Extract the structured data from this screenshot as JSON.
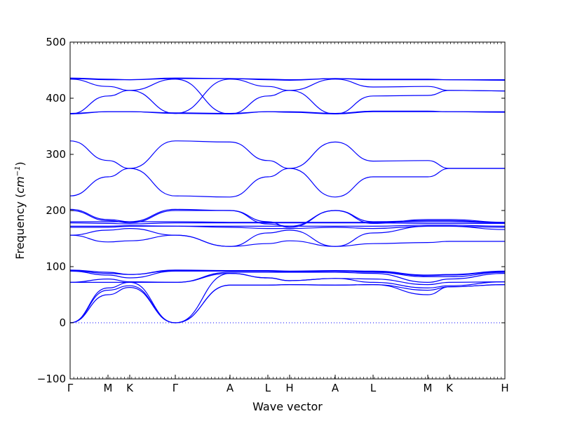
{
  "chart_data": {
    "type": "line",
    "title": "",
    "xlabel": "Wave vector",
    "ylabel": "Frequency (cm⁻¹)",
    "ylabel_parts": {
      "prefix": "Frequency (",
      "unit_base": "cm",
      "unit_exp": "−1",
      "suffix": ")"
    },
    "ylim": [
      -100,
      500
    ],
    "yticks": [
      -100,
      0,
      100,
      200,
      300,
      400,
      500
    ],
    "xlim": [
      0,
      1
    ],
    "high_symmetry_points": [
      {
        "label": "Γ",
        "x": 0.0
      },
      {
        "label": "M",
        "x": 0.0871
      },
      {
        "label": "K",
        "x": 0.1371
      },
      {
        "label": "Γ",
        "x": 0.2419
      },
      {
        "label": "A",
        "x": 0.3677
      },
      {
        "label": "L",
        "x": 0.4548
      },
      {
        "label": "H",
        "x": 0.5048
      },
      {
        "label": "A",
        "x": 0.6097
      },
      {
        "label": "L",
        "x": 0.6968
      },
      {
        "label": "M",
        "x": 0.8226
      },
      {
        "label": "K",
        "x": 0.8726
      },
      {
        "label": "H",
        "x": 1.0
      }
    ],
    "zero_line": true,
    "line_color": "#0000ff",
    "series": [
      {
        "values": [
          [
            0.0,
            0
          ],
          [
            0.0871,
            50
          ],
          [
            0.1371,
            63
          ],
          [
            0.2419,
            0
          ],
          [
            0.3677,
            67
          ],
          [
            0.4548,
            67
          ],
          [
            0.5048,
            68
          ],
          [
            0.6097,
            67
          ],
          [
            0.6968,
            68
          ],
          [
            0.8226,
            50
          ],
          [
            0.8726,
            64
          ],
          [
            1.0,
            68
          ]
        ]
      },
      {
        "values": [
          [
            0.0,
            0
          ],
          [
            0.0871,
            58
          ],
          [
            0.1371,
            66
          ],
          [
            0.2419,
            0
          ],
          [
            0.3677,
            67
          ],
          [
            0.4548,
            67
          ],
          [
            0.5048,
            68
          ],
          [
            0.6097,
            67
          ],
          [
            0.6968,
            68
          ],
          [
            0.8226,
            58
          ],
          [
            0.8726,
            64
          ],
          [
            1.0,
            68
          ]
        ]
      },
      {
        "values": [
          [
            0.0,
            0
          ],
          [
            0.0871,
            62
          ],
          [
            0.1371,
            72
          ],
          [
            0.2419,
            0
          ],
          [
            0.3677,
            88
          ],
          [
            0.4548,
            80
          ],
          [
            0.5048,
            75
          ],
          [
            0.6097,
            79
          ],
          [
            0.6968,
            72
          ],
          [
            0.8226,
            62
          ],
          [
            0.8726,
            66
          ],
          [
            1.0,
            73
          ]
        ]
      },
      {
        "values": [
          [
            0.0,
            72
          ],
          [
            0.0871,
            72
          ],
          [
            0.1371,
            72
          ],
          [
            0.2419,
            72
          ],
          [
            0.3677,
            88
          ],
          [
            0.4548,
            80
          ],
          [
            0.5048,
            75
          ],
          [
            0.6097,
            79
          ],
          [
            0.6968,
            78
          ],
          [
            0.8226,
            68
          ],
          [
            0.8726,
            72
          ],
          [
            1.0,
            73
          ]
        ]
      },
      {
        "values": [
          [
            0.0,
            72
          ],
          [
            0.0871,
            78
          ],
          [
            0.1371,
            73
          ],
          [
            0.2419,
            72
          ],
          [
            0.3677,
            90
          ],
          [
            0.4548,
            90
          ],
          [
            0.5048,
            90
          ],
          [
            0.6097,
            90
          ],
          [
            0.6968,
            88
          ],
          [
            0.8226,
            72
          ],
          [
            0.8726,
            78
          ],
          [
            1.0,
            88
          ]
        ]
      },
      {
        "values": [
          [
            0.0,
            92
          ],
          [
            0.0871,
            85
          ],
          [
            0.1371,
            80
          ],
          [
            0.2419,
            92
          ],
          [
            0.3677,
            92
          ],
          [
            0.4548,
            92
          ],
          [
            0.5048,
            91
          ],
          [
            0.6097,
            92
          ],
          [
            0.6968,
            90
          ],
          [
            0.8226,
            82
          ],
          [
            0.8726,
            82
          ],
          [
            1.0,
            90
          ]
        ]
      },
      {
        "values": [
          [
            0.0,
            93
          ],
          [
            0.0871,
            88
          ],
          [
            0.1371,
            86
          ],
          [
            0.2419,
            93
          ],
          [
            0.3677,
            93
          ],
          [
            0.4548,
            92
          ],
          [
            0.5048,
            91
          ],
          [
            0.6097,
            92
          ],
          [
            0.6968,
            91
          ],
          [
            0.8226,
            84
          ],
          [
            0.8726,
            85
          ],
          [
            1.0,
            91
          ]
        ]
      },
      {
        "values": [
          [
            0.0,
            94
          ],
          [
            0.0871,
            90
          ],
          [
            0.1371,
            86
          ],
          [
            0.2419,
            94
          ],
          [
            0.3677,
            93
          ],
          [
            0.4548,
            93
          ],
          [
            0.5048,
            92
          ],
          [
            0.6097,
            93
          ],
          [
            0.6968,
            92
          ],
          [
            0.8226,
            85
          ],
          [
            0.8726,
            86
          ],
          [
            1.0,
            92
          ]
        ]
      },
      {
        "values": [
          [
            0.0,
            156
          ],
          [
            0.0871,
            144
          ],
          [
            0.1371,
            146
          ],
          [
            0.2419,
            156
          ],
          [
            0.3677,
            136
          ],
          [
            0.4548,
            141
          ],
          [
            0.5048,
            146
          ],
          [
            0.6097,
            136
          ],
          [
            0.6968,
            141
          ],
          [
            0.8226,
            143
          ],
          [
            0.8726,
            145
          ],
          [
            1.0,
            145
          ]
        ]
      },
      {
        "values": [
          [
            0.0,
            156
          ],
          [
            0.0871,
            165
          ],
          [
            0.1371,
            168
          ],
          [
            0.2419,
            156
          ],
          [
            0.3677,
            136
          ],
          [
            0.4548,
            160
          ],
          [
            0.5048,
            165
          ],
          [
            0.6097,
            136
          ],
          [
            0.6968,
            160
          ],
          [
            0.8226,
            172
          ],
          [
            0.8726,
            172
          ],
          [
            1.0,
            166
          ]
        ]
      },
      {
        "values": [
          [
            0.0,
            170
          ],
          [
            0.0871,
            170
          ],
          [
            0.1371,
            172
          ],
          [
            0.2419,
            172
          ],
          [
            0.3677,
            170
          ],
          [
            0.4548,
            168
          ],
          [
            0.5048,
            168
          ],
          [
            0.6097,
            170
          ],
          [
            0.6968,
            168
          ],
          [
            0.8226,
            172
          ],
          [
            0.8726,
            172
          ],
          [
            1.0,
            170
          ]
        ]
      },
      {
        "values": [
          [
            0.0,
            172
          ],
          [
            0.0871,
            172
          ],
          [
            0.1371,
            173
          ],
          [
            0.2419,
            172
          ],
          [
            0.3677,
            172
          ],
          [
            0.4548,
            172
          ],
          [
            0.5048,
            172
          ],
          [
            0.6097,
            172
          ],
          [
            0.6968,
            172
          ],
          [
            0.8226,
            174
          ],
          [
            0.8726,
            174
          ],
          [
            1.0,
            172
          ]
        ]
      },
      {
        "values": [
          [
            0.0,
            178
          ],
          [
            0.0871,
            177
          ],
          [
            0.1371,
            176
          ],
          [
            0.2419,
            178
          ],
          [
            0.3677,
            178
          ],
          [
            0.4548,
            178
          ],
          [
            0.5048,
            178
          ],
          [
            0.6097,
            178
          ],
          [
            0.6968,
            178
          ],
          [
            0.8226,
            177
          ],
          [
            0.8726,
            177
          ],
          [
            1.0,
            177
          ]
        ]
      },
      {
        "values": [
          [
            0.0,
            180
          ],
          [
            0.0871,
            180
          ],
          [
            0.1371,
            180
          ],
          [
            0.2419,
            180
          ],
          [
            0.3677,
            179
          ],
          [
            0.4548,
            179
          ],
          [
            0.5048,
            179
          ],
          [
            0.6097,
            179
          ],
          [
            0.6968,
            179
          ],
          [
            0.8226,
            180
          ],
          [
            0.8726,
            180
          ],
          [
            1.0,
            178
          ]
        ]
      },
      {
        "values": [
          [
            0.0,
            200
          ],
          [
            0.0871,
            182
          ],
          [
            0.1371,
            178
          ],
          [
            0.2419,
            200
          ],
          [
            0.3677,
            200
          ],
          [
            0.4548,
            180
          ],
          [
            0.5048,
            170
          ],
          [
            0.6097,
            200
          ],
          [
            0.6968,
            180
          ],
          [
            0.8226,
            182
          ],
          [
            0.8726,
            182
          ],
          [
            1.0,
            178
          ]
        ]
      },
      {
        "values": [
          [
            0.0,
            202
          ],
          [
            0.0871,
            184
          ],
          [
            0.1371,
            180
          ],
          [
            0.2419,
            202
          ],
          [
            0.3677,
            200
          ],
          [
            0.4548,
            176
          ],
          [
            0.5048,
            172
          ],
          [
            0.6097,
            200
          ],
          [
            0.6968,
            177
          ],
          [
            0.8226,
            184
          ],
          [
            0.8726,
            184
          ],
          [
            1.0,
            179
          ]
        ]
      },
      {
        "values": [
          [
            0.0,
            226
          ],
          [
            0.0871,
            260
          ],
          [
            0.1371,
            275
          ],
          [
            0.2419,
            226
          ],
          [
            0.3677,
            224
          ],
          [
            0.4548,
            260
          ],
          [
            0.5048,
            275
          ],
          [
            0.6097,
            224
          ],
          [
            0.6968,
            260
          ],
          [
            0.8226,
            260
          ],
          [
            0.8726,
            275
          ],
          [
            1.0,
            275
          ]
        ]
      },
      {
        "values": [
          [
            0.0,
            324
          ],
          [
            0.0871,
            289
          ],
          [
            0.1371,
            275
          ],
          [
            0.2419,
            324
          ],
          [
            0.3677,
            322
          ],
          [
            0.4548,
            289
          ],
          [
            0.5048,
            275
          ],
          [
            0.6097,
            322
          ],
          [
            0.6968,
            288
          ],
          [
            0.8226,
            289
          ],
          [
            0.8726,
            275
          ],
          [
            1.0,
            275
          ]
        ]
      },
      {
        "values": [
          [
            0.0,
            372
          ],
          [
            0.0871,
            376
          ],
          [
            0.1371,
            376
          ],
          [
            0.2419,
            373
          ],
          [
            0.3677,
            372
          ],
          [
            0.4548,
            376
          ],
          [
            0.5048,
            375
          ],
          [
            0.6097,
            372
          ],
          [
            0.6968,
            376
          ],
          [
            0.8226,
            376
          ],
          [
            0.8726,
            376
          ],
          [
            1.0,
            375
          ]
        ]
      },
      {
        "values": [
          [
            0.0,
            373
          ],
          [
            0.0871,
            376
          ],
          [
            0.1371,
            376
          ],
          [
            0.2419,
            374
          ],
          [
            0.3677,
            373
          ],
          [
            0.4548,
            376
          ],
          [
            0.5048,
            376
          ],
          [
            0.6097,
            373
          ],
          [
            0.6968,
            377
          ],
          [
            0.8226,
            377
          ],
          [
            0.8726,
            376
          ],
          [
            1.0,
            376
          ]
        ]
      },
      {
        "values": [
          [
            0.0,
            372
          ],
          [
            0.0871,
            404
          ],
          [
            0.1371,
            414
          ],
          [
            0.2419,
            434
          ],
          [
            0.3677,
            372
          ],
          [
            0.4548,
            404
          ],
          [
            0.5048,
            414
          ],
          [
            0.6097,
            372
          ],
          [
            0.6968,
            404
          ],
          [
            0.8226,
            405
          ],
          [
            0.8726,
            414
          ],
          [
            1.0,
            413
          ]
        ]
      },
      {
        "values": [
          [
            0.0,
            434
          ],
          [
            0.0871,
            421
          ],
          [
            0.1371,
            414
          ],
          [
            0.2419,
            373
          ],
          [
            0.3677,
            434
          ],
          [
            0.4548,
            421
          ],
          [
            0.5048,
            414
          ],
          [
            0.6097,
            434
          ],
          [
            0.6968,
            420
          ],
          [
            0.8226,
            421
          ],
          [
            0.8726,
            414
          ],
          [
            1.0,
            413
          ]
        ]
      },
      {
        "values": [
          [
            0.0,
            435
          ],
          [
            0.0871,
            433
          ],
          [
            0.1371,
            433
          ],
          [
            0.2419,
            435
          ],
          [
            0.3677,
            435
          ],
          [
            0.4548,
            433
          ],
          [
            0.5048,
            432
          ],
          [
            0.6097,
            435
          ],
          [
            0.6968,
            433
          ],
          [
            0.8226,
            433
          ],
          [
            0.8726,
            433
          ],
          [
            1.0,
            432
          ]
        ]
      },
      {
        "values": [
          [
            0.0,
            436
          ],
          [
            0.0871,
            434
          ],
          [
            0.1371,
            433
          ],
          [
            0.2419,
            436
          ],
          [
            0.3677,
            435
          ],
          [
            0.4548,
            434
          ],
          [
            0.5048,
            433
          ],
          [
            0.6097,
            435
          ],
          [
            0.6968,
            434
          ],
          [
            0.8226,
            434
          ],
          [
            0.8726,
            433
          ],
          [
            1.0,
            433
          ]
        ]
      }
    ]
  }
}
